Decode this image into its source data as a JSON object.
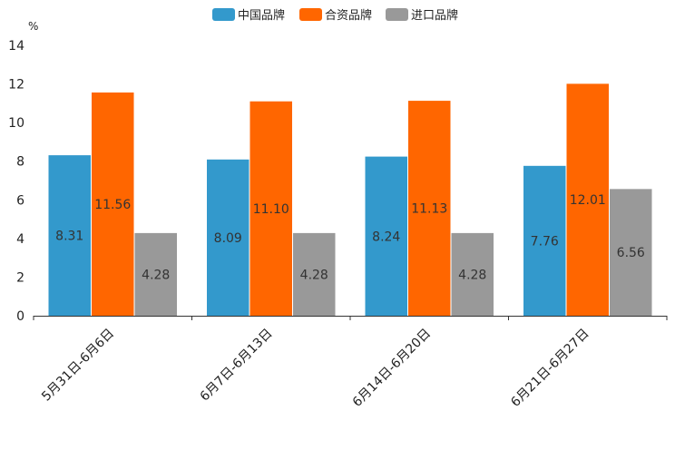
{
  "chart_data": {
    "type": "bar",
    "title": "",
    "unit": "%",
    "xlabel": "",
    "ylabel": "%",
    "ylim": [
      0,
      14
    ],
    "yticks": [
      0,
      2,
      4,
      6,
      8,
      10,
      12,
      14
    ],
    "grid": false,
    "legend_position": "top-center",
    "categories": [
      "5月31日-6月6日",
      "6月7日-6月13日",
      "6月14日-6月20日",
      "6月21日-6月27日"
    ],
    "series": [
      {
        "name": "中国品牌",
        "color": "#3399CC",
        "values": [
          8.31,
          8.09,
          8.24,
          7.76
        ]
      },
      {
        "name": "合资品牌",
        "color": "#FF6600",
        "values": [
          11.56,
          11.1,
          11.13,
          12.01
        ]
      },
      {
        "name": "进口品牌",
        "color": "#999999",
        "values": [
          4.28,
          4.28,
          4.28,
          6.56
        ]
      }
    ]
  }
}
